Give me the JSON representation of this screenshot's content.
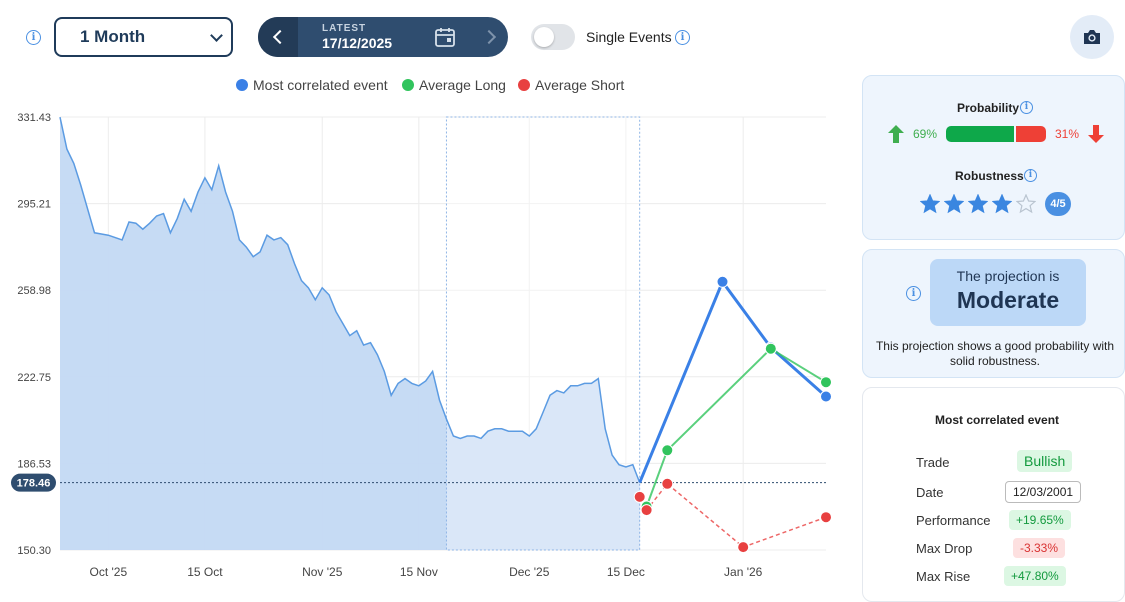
{
  "toolbar": {
    "period_value": "1 Month",
    "latest_label": "LATEST",
    "latest_date": "17/12/2025",
    "single_events_label": "Single Events",
    "single_events_on": false
  },
  "colors": {
    "area_fill": "#c3d9f3",
    "area_line": "#5b9be2",
    "most_correlated": "#3a80e6",
    "average_long": "#31c45d",
    "average_short": "#e84040",
    "navy": "#2f4d6f"
  },
  "chart_data": {
    "type": "line",
    "legend_position": "top",
    "grid": true,
    "y_ticks": [
      "331.43",
      "295.21",
      "258.98",
      "222.75",
      "186.53",
      "150.30"
    ],
    "ylim": [
      150.3,
      331.43
    ],
    "x_ticks": [
      {
        "label": "Oct '25",
        "date": "2025-10-01"
      },
      {
        "label": "15 Oct",
        "date": "2025-10-15"
      },
      {
        "label": "Nov '25",
        "date": "2025-11-01"
      },
      {
        "label": "15 Nov",
        "date": "2025-11-15"
      },
      {
        "label": "Dec '25",
        "date": "2025-12-01"
      },
      {
        "label": "15 Dec",
        "date": "2025-12-15"
      },
      {
        "label": "Jan '26",
        "date": "2026-01-01"
      }
    ],
    "x_range": [
      "2025-09-24",
      "2026-01-13"
    ],
    "current_value": "178.46",
    "highlight_range": [
      "2025-11-19",
      "2025-12-17"
    ],
    "price_series": [
      [
        "2025-09-24",
        331.4
      ],
      [
        "2025-09-25",
        318.0
      ],
      [
        "2025-09-26",
        312.0
      ],
      [
        "2025-09-27",
        303.0
      ],
      [
        "2025-09-28",
        293.0
      ],
      [
        "2025-09-29",
        283.0
      ],
      [
        "2025-09-30",
        282.5
      ],
      [
        "2025-10-01",
        282.0
      ],
      [
        "2025-10-02",
        281.0
      ],
      [
        "2025-10-03",
        280.0
      ],
      [
        "2025-10-04",
        287.5
      ],
      [
        "2025-10-05",
        287.0
      ],
      [
        "2025-10-06",
        284.5
      ],
      [
        "2025-10-07",
        287.0
      ],
      [
        "2025-10-08",
        290.0
      ],
      [
        "2025-10-09",
        291.0
      ],
      [
        "2025-10-10",
        283.0
      ],
      [
        "2025-10-11",
        289.0
      ],
      [
        "2025-10-12",
        297.0
      ],
      [
        "2025-10-13",
        292.0
      ],
      [
        "2025-10-14",
        300.0
      ],
      [
        "2025-10-15",
        306.0
      ],
      [
        "2025-10-16",
        301.0
      ],
      [
        "2025-10-17",
        311.0
      ],
      [
        "2025-10-18",
        300.0
      ],
      [
        "2025-10-19",
        292.0
      ],
      [
        "2025-10-20",
        280.0
      ],
      [
        "2025-10-21",
        277.0
      ],
      [
        "2025-10-22",
        273.0
      ],
      [
        "2025-10-23",
        275.0
      ],
      [
        "2025-10-24",
        282.0
      ],
      [
        "2025-10-25",
        280.0
      ],
      [
        "2025-10-26",
        281.0
      ],
      [
        "2025-10-27",
        278.0
      ],
      [
        "2025-10-28",
        270.0
      ],
      [
        "2025-10-29",
        263.0
      ],
      [
        "2025-10-30",
        260.0
      ],
      [
        "2025-10-31",
        255.0
      ],
      [
        "2025-11-01",
        260.0
      ],
      [
        "2025-11-02",
        257.0
      ],
      [
        "2025-11-03",
        250.0
      ],
      [
        "2025-11-04",
        245.0
      ],
      [
        "2025-11-05",
        240.0
      ],
      [
        "2025-11-06",
        242.0
      ],
      [
        "2025-11-07",
        236.0
      ],
      [
        "2025-11-08",
        237.0
      ],
      [
        "2025-11-09",
        232.0
      ],
      [
        "2025-11-10",
        225.0
      ],
      [
        "2025-11-11",
        215.0
      ],
      [
        "2025-11-12",
        220.0
      ],
      [
        "2025-11-13",
        222.0
      ],
      [
        "2025-11-14",
        220.0
      ],
      [
        "2025-11-15",
        219.0
      ],
      [
        "2025-11-16",
        221.0
      ],
      [
        "2025-11-17",
        225.0
      ],
      [
        "2025-11-18",
        213.0
      ],
      [
        "2025-11-19",
        205.0
      ],
      [
        "2025-11-20",
        198.0
      ],
      [
        "2025-11-21",
        197.0
      ],
      [
        "2025-11-22",
        198.0
      ],
      [
        "2025-11-23",
        198.0
      ],
      [
        "2025-11-24",
        197.0
      ],
      [
        "2025-11-25",
        200.0
      ],
      [
        "2025-11-26",
        201.0
      ],
      [
        "2025-11-27",
        201.0
      ],
      [
        "2025-11-28",
        200.0
      ],
      [
        "2025-11-29",
        200.0
      ],
      [
        "2025-11-30",
        200.0
      ],
      [
        "2025-12-01",
        198.0
      ],
      [
        "2025-12-02",
        201.0
      ],
      [
        "2025-12-03",
        208.0
      ],
      [
        "2025-12-04",
        215.0
      ],
      [
        "2025-12-05",
        217.0
      ],
      [
        "2025-12-06",
        216.0
      ],
      [
        "2025-12-07",
        219.0
      ],
      [
        "2025-12-08",
        219.0
      ],
      [
        "2025-12-09",
        220.0
      ],
      [
        "2025-12-10",
        220.0
      ],
      [
        "2025-12-11",
        222.0
      ],
      [
        "2025-12-12",
        201.0
      ],
      [
        "2025-12-13",
        190.0
      ],
      [
        "2025-12-14",
        186.0
      ],
      [
        "2025-12-15",
        185.0
      ],
      [
        "2025-12-16",
        186.0
      ],
      [
        "2025-12-17",
        178.5
      ]
    ],
    "series": [
      {
        "name": "Most correlated event",
        "points": [
          [
            "2025-12-17",
            178.5
          ],
          [
            "2025-12-29",
            262.5
          ],
          [
            "2026-01-05",
            235.0
          ],
          [
            "2026-01-13",
            214.5
          ]
        ]
      },
      {
        "name": "Average Long",
        "points": [
          [
            "2025-12-18",
            168.5
          ],
          [
            "2025-12-21",
            192.0
          ],
          [
            "2026-01-05",
            234.5
          ],
          [
            "2026-01-13",
            220.5
          ]
        ]
      },
      {
        "name": "Average Short",
        "points": [
          [
            "2025-12-17",
            172.5
          ],
          [
            "2025-12-18",
            167.0
          ],
          [
            "2025-12-21",
            178.0
          ],
          [
            "2026-01-01",
            151.5
          ],
          [
            "2026-01-13",
            164.0
          ]
        ]
      }
    ]
  },
  "legend": [
    {
      "label": "Most correlated event"
    },
    {
      "label": "Average Long"
    },
    {
      "label": "Average Short"
    }
  ],
  "probability": {
    "title": "Probability",
    "up_pct": "69%",
    "down_pct": "31%",
    "up_value": 69,
    "down_value": 31
  },
  "robustness": {
    "title": "Robustness",
    "rating": 4,
    "max": 5,
    "badge": "4/5"
  },
  "projection": {
    "line1": "The projection is",
    "level": "Moderate",
    "description_line1": "This projection shows a good probability with",
    "description_line2": "solid robustness."
  },
  "correlated": {
    "title": "Most correlated event",
    "rows": [
      {
        "label": "Trade",
        "value": "Bullish"
      },
      {
        "label": "Date",
        "value": "12/03/2001"
      },
      {
        "label": "Performance",
        "value": "+19.65%"
      },
      {
        "label": "Max Drop",
        "value": "-3.33%"
      },
      {
        "label": "Max Rise",
        "value": "+47.80%"
      }
    ]
  }
}
